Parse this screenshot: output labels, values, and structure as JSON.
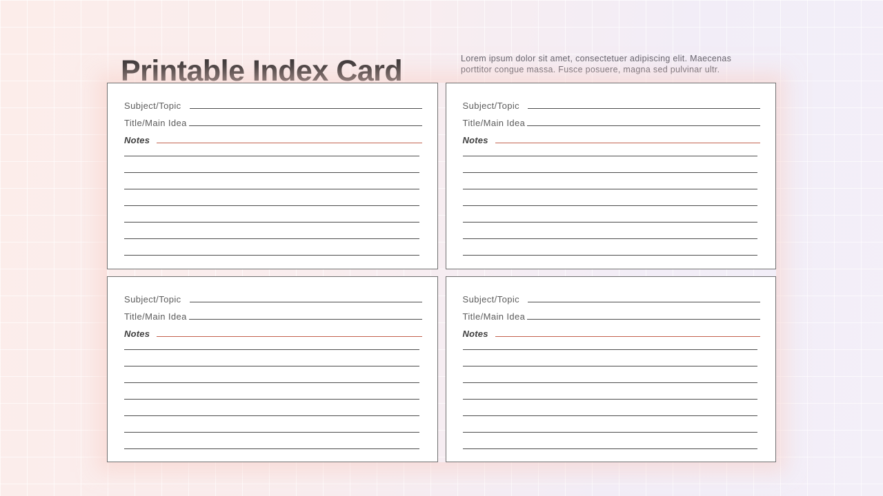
{
  "header": {
    "title": "Printable Index Card",
    "subtitle": "Lorem ipsum dolor sit amet, consectetuer adipiscing elit. Maecenas porttitor congue massa. Fusce posuere, magna sed pulvinar ultr."
  },
  "card": {
    "subject_label": "Subject/Topic",
    "title_label": "Title/Main Idea",
    "notes_label": "Notes",
    "ruled_line_count": 7
  },
  "colors": {
    "accent_line": "#c2604c",
    "rule_line": "#4b4b4b",
    "card_border": "#6f6f6f",
    "card_bg": "#ffffff",
    "title_text": "#383435",
    "label_text": "#5b5b5b",
    "subtitle_text": "#63616a",
    "bg_pink": "#fcedea",
    "bg_lavender": "#f2edf7"
  }
}
